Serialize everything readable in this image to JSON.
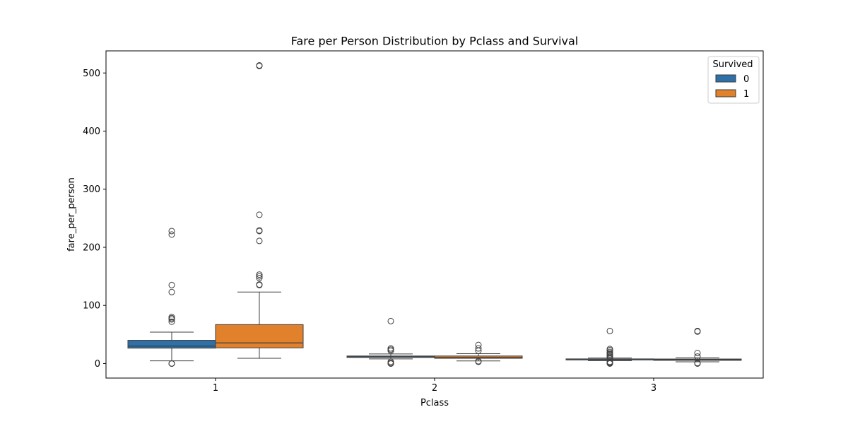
{
  "chart_data": {
    "type": "boxplot",
    "title": "Fare per Person Distribution by Pclass and Survival",
    "xlabel": "Pclass",
    "ylabel": "fare_per_person",
    "categories": [
      "1",
      "2",
      "3"
    ],
    "ylim": [
      -25,
      538
    ],
    "yticks": [
      0,
      100,
      200,
      300,
      400,
      500
    ],
    "legend": {
      "title": "Survived",
      "position": "top-right",
      "entries": [
        "0",
        "1"
      ]
    },
    "series": [
      {
        "name": "0",
        "color": "#2f70a8",
        "boxes": [
          {
            "category": "1",
            "whislo": 4.6,
            "q1": 26.5,
            "median": 30.0,
            "q3": 40.0,
            "whishi": 54.0,
            "fliers": [
              0,
              0,
              0,
              72,
              76,
              78,
              80,
              123,
              135,
              222,
              228
            ]
          },
          {
            "category": "2",
            "whislo": 8.0,
            "q1": 10.5,
            "median": 11.5,
            "q3": 13.0,
            "whishi": 16.5,
            "fliers": [
              0,
              0,
              1,
              3,
              22,
              24,
              26,
              73
            ]
          },
          {
            "category": "3",
            "whislo": 5.0,
            "q1": 7.0,
            "median": 7.6,
            "q3": 8.0,
            "whishi": 9.5,
            "fliers": [
              0,
              1,
              2,
              3,
              10,
              12,
              14,
              16,
              18,
              20,
              23,
              25,
              56
            ]
          }
        ]
      },
      {
        "name": "1",
        "color": "#e1812c",
        "boxes": [
          {
            "category": "1",
            "whislo": 9.0,
            "q1": 27.0,
            "median": 35.5,
            "q3": 67.0,
            "whishi": 123.0,
            "fliers": [
              135,
              136,
              147,
              150,
              153,
              211,
              228,
              229,
              256,
              512,
              513
            ]
          },
          {
            "category": "2",
            "whislo": 4.5,
            "q1": 9.0,
            "median": 10.5,
            "q3": 13.0,
            "whishi": 17.0,
            "fliers": [
              3,
              4,
              22,
              26,
              32
            ]
          },
          {
            "category": "3",
            "whislo": 3.0,
            "q1": 5.5,
            "median": 6.5,
            "q3": 7.8,
            "whishi": 10.0,
            "fliers": [
              0,
              1,
              12,
              18,
              55,
              56
            ]
          }
        ]
      }
    ]
  }
}
